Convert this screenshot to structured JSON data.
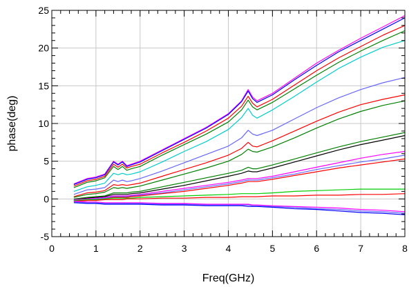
{
  "chart_data": {
    "type": "line",
    "title": "",
    "xlabel": "Freq(GHz)",
    "ylabel": "phase(deg)",
    "xlim": [
      0,
      8
    ],
    "ylim": [
      -5,
      25
    ],
    "x_ticks": [
      0,
      1,
      2,
      3,
      4,
      5,
      6,
      7,
      8
    ],
    "x_tick_labels": [
      "0",
      "1",
      "2",
      "3",
      "4",
      "5",
      "6",
      "7",
      "8"
    ],
    "y_ticks": [
      -5,
      0,
      5,
      10,
      15,
      20,
      25
    ],
    "y_tick_labels": [
      "-5",
      "0",
      "5",
      "10",
      "15",
      "20",
      "25"
    ],
    "x_minor_per_major": 5,
    "y_minor_per_major": 5,
    "grid": true,
    "legend": "none",
    "colors": [
      "#ff00ff",
      "#0000ff",
      "#ff0000",
      "#008000",
      "#00cccc",
      "#6666ff",
      "#000000"
    ],
    "x": [
      0.5,
      0.8,
      1.0,
      1.2,
      1.4,
      1.5,
      1.6,
      1.7,
      1.8,
      2.0,
      2.5,
      3.0,
      3.5,
      4.0,
      4.3,
      4.45,
      4.55,
      4.65,
      5.0,
      5.5,
      6.0,
      6.5,
      7.0,
      7.5,
      8.0
    ],
    "series": [
      {
        "values": [
          2.0,
          2.7,
          2.9,
          3.3,
          5.0,
          4.6,
          5.0,
          4.4,
          4.6,
          5.0,
          6.5,
          8.0,
          9.5,
          11.3,
          13.0,
          14.5,
          13.5,
          13.0,
          14.0,
          16.0,
          18.0,
          19.7,
          21.3,
          22.8,
          24.3
        ],
        "color": "#ff00ff"
      },
      {
        "values": [
          1.9,
          2.6,
          2.8,
          3.2,
          4.9,
          4.5,
          4.9,
          4.3,
          4.5,
          4.9,
          6.4,
          7.9,
          9.4,
          11.2,
          12.9,
          14.3,
          13.3,
          12.8,
          13.8,
          15.8,
          17.7,
          19.5,
          21.0,
          22.5,
          24.0
        ],
        "color": "#0000ff"
      },
      {
        "values": [
          1.7,
          2.4,
          2.6,
          3.0,
          4.6,
          4.2,
          4.6,
          4.1,
          4.3,
          4.6,
          6.1,
          7.5,
          9.0,
          10.7,
          12.3,
          13.6,
          12.7,
          12.2,
          13.2,
          15.1,
          17.0,
          18.7,
          20.2,
          21.7,
          23.0
        ],
        "color": "#ff0000"
      },
      {
        "values": [
          1.5,
          2.2,
          2.4,
          2.8,
          4.3,
          3.9,
          4.3,
          3.8,
          4.0,
          4.3,
          5.8,
          7.2,
          8.6,
          10.2,
          11.8,
          13.1,
          12.2,
          11.8,
          12.8,
          14.6,
          16.4,
          18.1,
          19.6,
          21.0,
          22.3
        ],
        "color": "#008000"
      },
      {
        "values": [
          1.0,
          1.6,
          1.8,
          2.1,
          3.4,
          3.2,
          3.4,
          3.2,
          3.3,
          3.6,
          4.9,
          6.3,
          7.6,
          9.2,
          10.8,
          12.0,
          11.1,
          10.7,
          11.8,
          13.6,
          15.5,
          17.3,
          18.8,
          20.1,
          21.0
        ],
        "color": "#00cccc"
      },
      {
        "values": [
          0.6,
          1.2,
          1.3,
          1.5,
          2.5,
          2.3,
          2.5,
          2.3,
          2.4,
          2.7,
          3.7,
          4.8,
          5.9,
          7.0,
          8.1,
          9.1,
          8.6,
          8.4,
          9.1,
          10.6,
          12.1,
          13.4,
          14.5,
          15.4,
          16.1
        ],
        "color": "#6666ff"
      },
      {
        "values": [
          0.3,
          0.8,
          0.9,
          1.1,
          1.9,
          1.8,
          1.9,
          1.8,
          1.9,
          2.1,
          3.0,
          3.9,
          4.8,
          5.8,
          6.7,
          7.5,
          7.0,
          6.9,
          7.7,
          9.0,
          10.3,
          11.5,
          12.5,
          13.2,
          13.8
        ],
        "color": "#ff0000"
      },
      {
        "values": [
          0.2,
          0.6,
          0.7,
          0.9,
          1.5,
          1.4,
          1.5,
          1.4,
          1.5,
          1.7,
          2.5,
          3.3,
          4.1,
          5.0,
          5.9,
          6.6,
          6.3,
          6.2,
          6.9,
          8.1,
          9.4,
          10.6,
          11.6,
          12.4,
          13.0
        ],
        "color": "#008000"
      },
      {
        "values": [
          0.0,
          0.2,
          0.3,
          0.4,
          0.8,
          0.8,
          0.8,
          0.8,
          0.9,
          1.0,
          1.6,
          2.2,
          2.8,
          3.4,
          3.8,
          4.2,
          4.0,
          4.0,
          4.5,
          5.3,
          6.1,
          6.9,
          7.6,
          8.2,
          8.8
        ],
        "color": "#008000"
      },
      {
        "values": [
          -0.1,
          0.1,
          0.2,
          0.3,
          0.6,
          0.6,
          0.6,
          0.6,
          0.7,
          0.8,
          1.3,
          1.8,
          2.4,
          3.0,
          3.4,
          3.7,
          3.6,
          3.6,
          4.1,
          4.9,
          5.7,
          6.5,
          7.2,
          7.8,
          8.4
        ],
        "color": "#000000"
      },
      {
        "values": [
          -0.1,
          0.0,
          0.1,
          0.2,
          0.4,
          0.4,
          0.4,
          0.4,
          0.5,
          0.6,
          1.0,
          1.4,
          1.8,
          2.2,
          2.5,
          2.7,
          2.7,
          2.7,
          3.0,
          3.6,
          4.2,
          4.8,
          5.4,
          5.9,
          6.3
        ],
        "color": "#ff00ff"
      },
      {
        "values": [
          -0.2,
          -0.1,
          0.0,
          0.1,
          0.3,
          0.3,
          0.3,
          0.3,
          0.4,
          0.5,
          0.8,
          1.2,
          1.6,
          2.0,
          2.3,
          2.5,
          2.5,
          2.5,
          2.8,
          3.3,
          3.9,
          4.4,
          4.9,
          5.3,
          5.8
        ],
        "color": "#6666ff"
      },
      {
        "values": [
          -0.3,
          -0.2,
          -0.1,
          0.0,
          0.2,
          0.2,
          0.2,
          0.2,
          0.3,
          0.4,
          0.7,
          1.0,
          1.4,
          1.8,
          2.1,
          2.3,
          2.3,
          2.3,
          2.6,
          3.1,
          3.6,
          4.1,
          4.5,
          4.9,
          5.3
        ],
        "color": "#ff0000"
      },
      {
        "values": [
          -0.2,
          -0.1,
          -0.1,
          0.0,
          0.1,
          0.1,
          0.1,
          0.1,
          0.1,
          0.2,
          0.3,
          0.4,
          0.5,
          0.6,
          0.7,
          0.7,
          0.7,
          0.7,
          0.8,
          1.0,
          1.1,
          1.2,
          1.3,
          1.3,
          1.3
        ],
        "color": "#00cc00"
      },
      {
        "values": [
          -0.3,
          -0.2,
          -0.2,
          -0.1,
          -0.1,
          -0.1,
          -0.1,
          0.0,
          0.0,
          0.0,
          0.1,
          0.1,
          0.2,
          0.2,
          0.3,
          0.3,
          0.3,
          0.3,
          0.4,
          0.4,
          0.5,
          0.5,
          0.6,
          0.6,
          0.7
        ],
        "color": "#ff0000"
      },
      {
        "values": [
          -0.4,
          -0.5,
          -0.5,
          -0.6,
          -0.6,
          -0.6,
          -0.6,
          -0.6,
          -0.6,
          -0.6,
          -0.7,
          -0.7,
          -0.8,
          -0.8,
          -0.8,
          -0.8,
          -0.9,
          -0.9,
          -1.0,
          -1.1,
          -1.3,
          -1.4,
          -1.6,
          -1.7,
          -1.9
        ],
        "color": "#6666ff"
      },
      {
        "values": [
          -0.5,
          -0.6,
          -0.6,
          -0.7,
          -0.7,
          -0.7,
          -0.7,
          -0.7,
          -0.7,
          -0.7,
          -0.8,
          -0.8,
          -0.9,
          -0.9,
          -0.9,
          -1.0,
          -1.0,
          -1.0,
          -1.1,
          -1.3,
          -1.4,
          -1.6,
          -1.8,
          -1.9,
          -2.1
        ],
        "color": "#0000ff"
      },
      {
        "values": [
          -0.3,
          -0.4,
          -0.4,
          -0.5,
          -0.5,
          -0.5,
          -0.5,
          -0.5,
          -0.5,
          -0.5,
          -0.6,
          -0.6,
          -0.7,
          -0.7,
          -0.7,
          -0.7,
          -0.8,
          -0.8,
          -0.9,
          -1.0,
          -1.1,
          -1.2,
          -1.4,
          -1.5,
          -1.7
        ],
        "color": "#ff00ff"
      }
    ]
  }
}
